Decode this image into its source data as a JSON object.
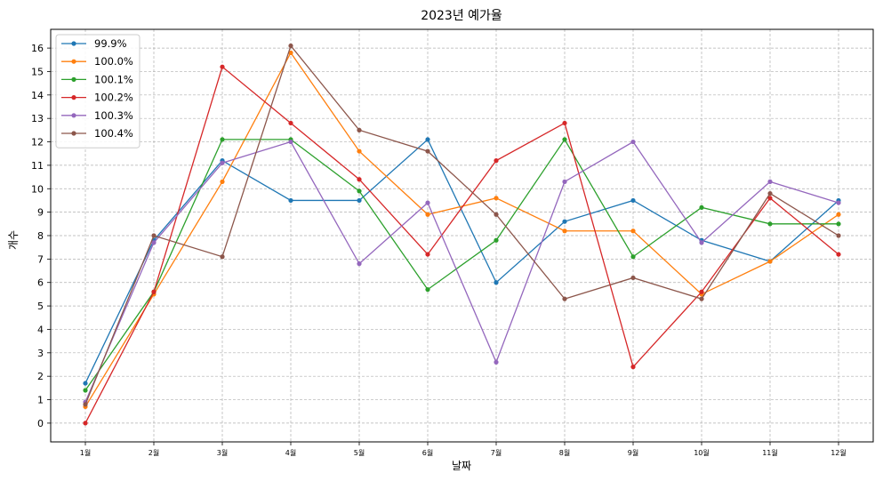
{
  "chart_data": {
    "type": "line",
    "title": "2023년 예가율",
    "xlabel": "날짜",
    "ylabel": "개수",
    "categories": [
      "1월",
      "2월",
      "3월",
      "4월",
      "5월",
      "6월",
      "7월",
      "8월",
      "9월",
      "10월",
      "11월",
      "12월"
    ],
    "yticks": [
      0,
      1,
      2,
      3,
      4,
      5,
      6,
      7,
      8,
      9,
      10,
      11,
      12,
      13,
      14,
      15,
      16
    ],
    "ylim": [
      -0.8,
      16.8
    ],
    "grid": true,
    "legend_position": "top-left",
    "series": [
      {
        "name": "99.9%",
        "color": "#1f77b4",
        "values": [
          1.7,
          7.8,
          11.2,
          9.5,
          9.5,
          12.1,
          6.0,
          8.6,
          9.5,
          7.8,
          6.9,
          9.5
        ]
      },
      {
        "name": "100.0%",
        "color": "#ff7f0e",
        "values": [
          0.7,
          5.5,
          10.3,
          15.8,
          11.6,
          8.9,
          9.6,
          8.2,
          8.2,
          5.5,
          6.9,
          8.9
        ]
      },
      {
        "name": "100.1%",
        "color": "#2ca02c",
        "values": [
          1.4,
          5.6,
          12.1,
          12.1,
          9.9,
          5.7,
          7.8,
          12.1,
          7.1,
          9.2,
          8.5,
          8.5
        ]
      },
      {
        "name": "100.2%",
        "color": "#d62728",
        "values": [
          0.0,
          5.6,
          15.2,
          12.8,
          10.4,
          7.2,
          11.2,
          12.8,
          2.4,
          5.6,
          9.6,
          7.2
        ]
      },
      {
        "name": "100.3%",
        "color": "#9467bd",
        "values": [
          0.9,
          7.7,
          11.1,
          12.0,
          6.8,
          9.4,
          2.6,
          10.3,
          12.0,
          7.7,
          10.3,
          9.4
        ]
      },
      {
        "name": "100.4%",
        "color": "#8c564b",
        "values": [
          0.8,
          8.0,
          7.1,
          16.1,
          12.5,
          11.6,
          8.9,
          5.3,
          6.2,
          5.3,
          9.8,
          8.0
        ]
      }
    ]
  }
}
